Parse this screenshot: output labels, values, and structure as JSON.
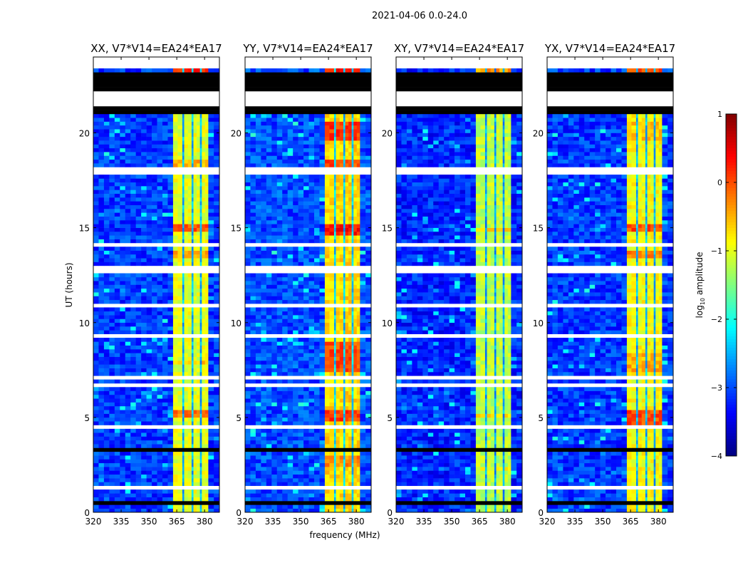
{
  "chart_data": {
    "type": "heatmap",
    "title": "2021-04-06 0.0-24.0",
    "xlabel": "frequency (MHz)",
    "ylabel": "UT (hours)",
    "xlim": [
      320,
      388
    ],
    "ylim": [
      0,
      24
    ],
    "xticks": [
      320,
      335,
      350,
      365,
      380
    ],
    "yticks": [
      0,
      5,
      10,
      15,
      20
    ],
    "colorbar": {
      "label_main": "log",
      "label_sub": "10",
      "label_rest": " amplitude",
      "range": [
        -4,
        1
      ],
      "ticks": [
        1,
        0,
        -1,
        -2,
        -3,
        -4
      ],
      "tick_labels": [
        "1",
        "0",
        "−1",
        "−2",
        "−3",
        "−4"
      ],
      "colormap": "jet"
    },
    "freq_segments": [
      {
        "from": 320,
        "to": 363,
        "kind": "background"
      },
      {
        "from": 363,
        "to": 368,
        "kind": "band"
      },
      {
        "from": 368,
        "to": 369,
        "kind": "gap"
      },
      {
        "from": 369,
        "to": 373,
        "kind": "band"
      },
      {
        "from": 373,
        "to": 374,
        "kind": "gap"
      },
      {
        "from": 374,
        "to": 377.5,
        "kind": "band"
      },
      {
        "from": 377.5,
        "to": 378.5,
        "kind": "gap"
      },
      {
        "from": 378.5,
        "to": 382,
        "kind": "band"
      },
      {
        "from": 382,
        "to": 388,
        "kind": "background"
      }
    ],
    "flagged_white": [
      [
        23.45,
        24
      ],
      [
        21.37,
        22.2
      ],
      [
        20.35,
        20.45
      ],
      [
        19.15,
        19.25
      ],
      [
        18.05,
        18.15
      ],
      [
        17.85,
        17.9
      ],
      [
        16.15,
        16.25
      ],
      [
        15.55,
        15.6
      ],
      [
        14.0,
        14.2
      ],
      [
        12.55,
        12.95
      ],
      [
        11.75,
        11.85
      ],
      [
        10.85,
        10.95
      ],
      [
        9.25,
        9.4
      ],
      [
        7.55,
        7.65
      ],
      [
        6.95,
        7.2
      ],
      [
        6.65,
        6.75
      ],
      [
        5.75,
        5.8
      ],
      [
        4.45,
        4.55
      ],
      [
        4.05,
        4.1
      ],
      [
        3.85,
        3.9
      ],
      [
        1.3,
        1.45
      ]
    ],
    "flagged_black": [
      [
        22.2,
        23.17
      ],
      [
        21.05,
        21.37
      ],
      [
        20.9,
        20.95
      ],
      [
        19.9,
        19.95
      ],
      [
        18.6,
        18.65
      ],
      [
        17.5,
        17.55
      ],
      [
        16.5,
        16.55
      ],
      [
        15.2,
        15.25
      ],
      [
        13.8,
        13.85
      ],
      [
        13.0,
        13.05
      ],
      [
        11.3,
        11.35
      ],
      [
        10.6,
        10.65
      ],
      [
        8.6,
        8.65
      ],
      [
        6.2,
        6.25
      ],
      [
        4.8,
        4.85
      ],
      [
        3.3,
        3.35
      ],
      [
        2.0,
        2.05
      ],
      [
        1.0,
        1.05
      ],
      [
        0.5,
        0.55
      ]
    ],
    "panels": [
      {
        "title": "XX, V7*V14=EA24*EA17",
        "background_level": -3.1,
        "band_level": -1.0,
        "events": [
          [
            23.2,
            23.45,
            1.2
          ],
          [
            18.2,
            18.6,
            0.5
          ],
          [
            14.8,
            15.2,
            1.0
          ],
          [
            13.4,
            13.7,
            0.5
          ],
          [
            5.0,
            5.5,
            0.8
          ],
          [
            7.8,
            8.1,
            0.4
          ]
        ]
      },
      {
        "title": "YY, V7*V14=EA24*EA17",
        "background_level": -3.0,
        "band_level": -0.7,
        "events": [
          [
            23.2,
            23.45,
            1.0
          ],
          [
            19.6,
            20.5,
            0.8
          ],
          [
            18.2,
            18.6,
            0.7
          ],
          [
            14.5,
            15.2,
            1.0
          ],
          [
            7.5,
            9.0,
            0.7
          ],
          [
            4.8,
            5.5,
            0.8
          ],
          [
            2.4,
            3.0,
            0.4
          ]
        ]
      },
      {
        "title": "XY, V7*V14=EA24*EA17",
        "background_level": -3.2,
        "band_level": -1.2,
        "events": [
          [
            23.2,
            23.45,
            0.8
          ],
          [
            14.8,
            15.0,
            0.5
          ],
          [
            5.0,
            5.2,
            0.4
          ],
          [
            2.2,
            2.4,
            0.3
          ]
        ]
      },
      {
        "title": "YX, V7*V14=EA24*EA17",
        "background_level": -3.1,
        "band_level": -0.9,
        "events": [
          [
            23.2,
            23.45,
            0.9
          ],
          [
            19.5,
            20.5,
            0.3
          ],
          [
            14.7,
            15.2,
            0.9
          ],
          [
            13.4,
            13.7,
            0.6
          ],
          [
            4.7,
            5.5,
            0.9
          ],
          [
            7.5,
            8.5,
            0.4
          ]
        ]
      }
    ]
  }
}
